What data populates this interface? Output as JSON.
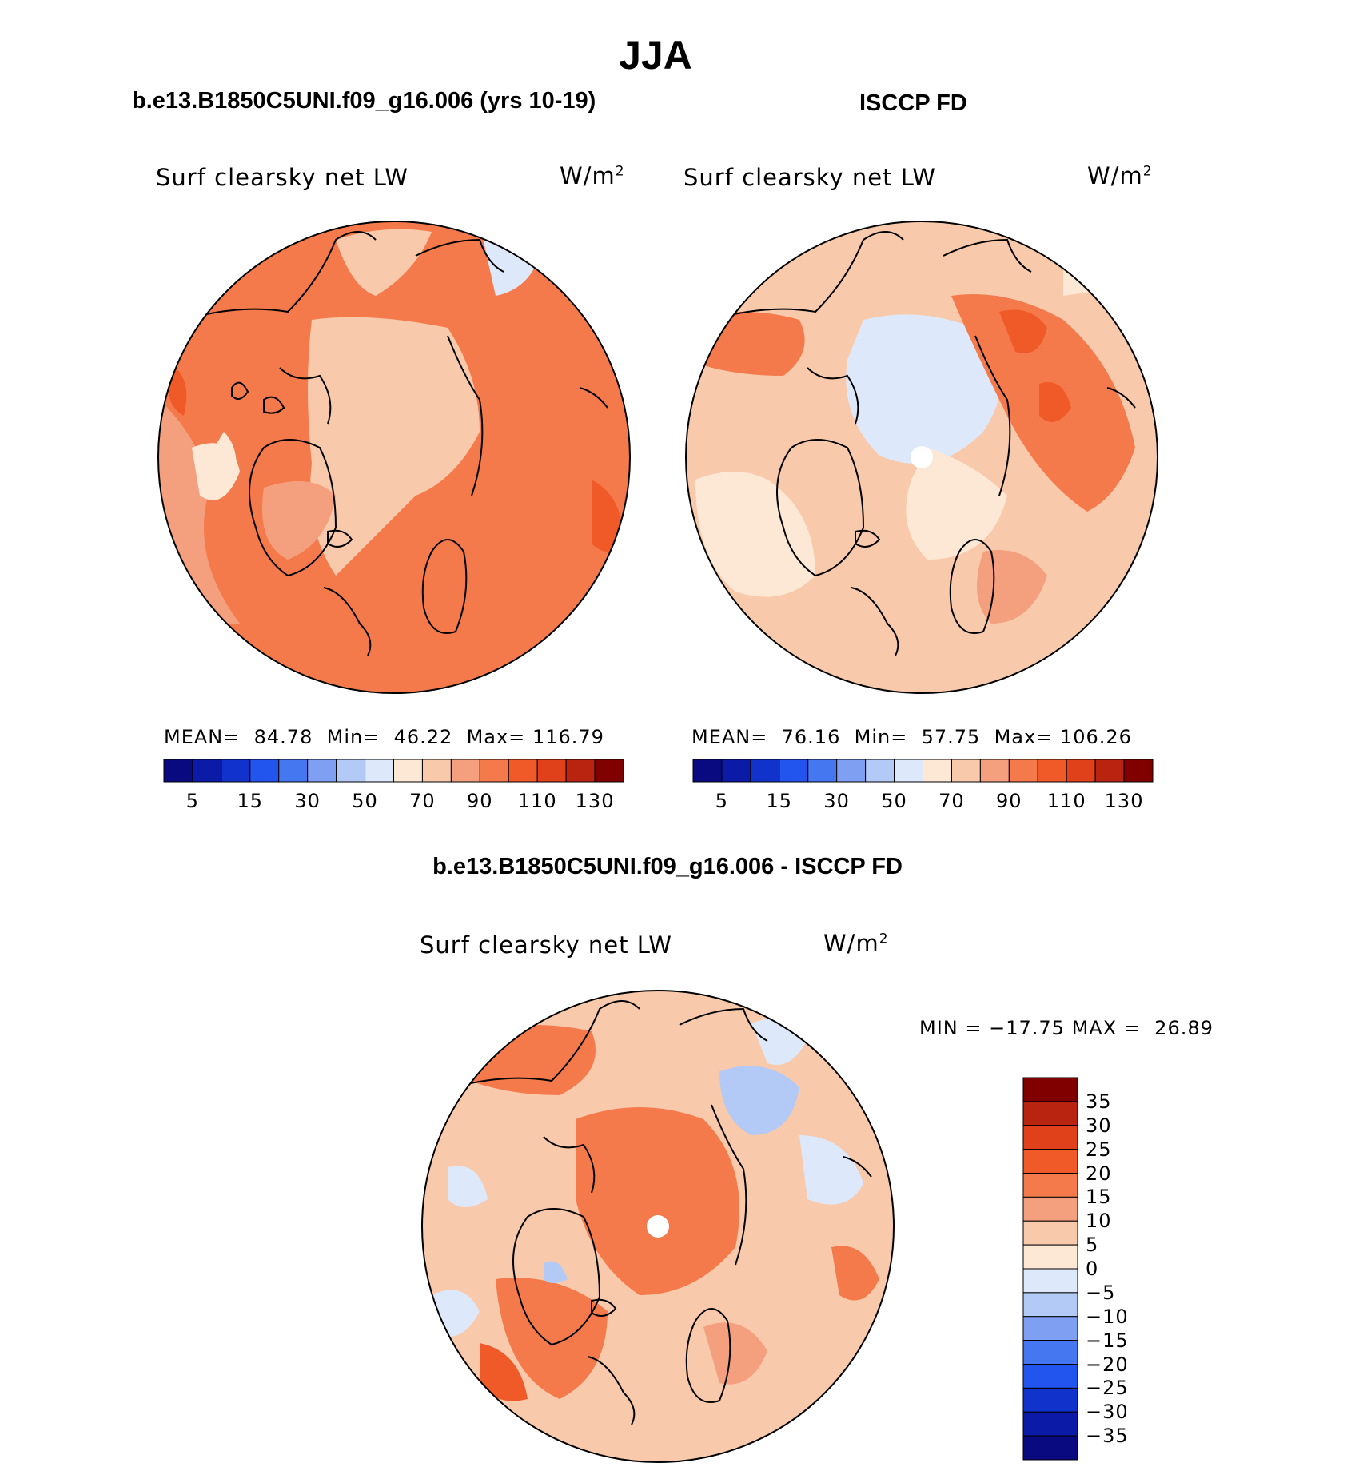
{
  "season": "JJA",
  "panels": [
    {
      "title": "b.e13.B1850C5UNI.f09_g16.006 (yrs 10-19)",
      "variable": "Surf clearsky net LW",
      "units_base": "W/m",
      "units_exp": "2",
      "mean_label": "MEAN=",
      "mean": "84.78",
      "min_label": "Min=",
      "min": "46.22",
      "max_label": "Max=",
      "max": "116.79"
    },
    {
      "title": "ISCCP FD",
      "variable": "Surf clearsky net LW",
      "units_base": "W/m",
      "units_exp": "2",
      "mean_label": "MEAN=",
      "mean": "76.16",
      "min_label": "Min=",
      "min": "57.75",
      "max_label": "Max=",
      "max": "106.26"
    }
  ],
  "abs_colorbar": {
    "colors": [
      "#0a0a80",
      "#0c1aa8",
      "#1133cc",
      "#2255ee",
      "#4477f0",
      "#7f9ff2",
      "#b3c9f6",
      "#dde9fb",
      "#fde8d6",
      "#f8c9ab",
      "#f4a07e",
      "#f47a4c",
      "#f05a28",
      "#e0401a",
      "#b82410",
      "#800000"
    ],
    "tick_labels": [
      "5",
      "15",
      "30",
      "50",
      "70",
      "90",
      "110",
      "130"
    ]
  },
  "diff": {
    "title": "b.e13.B1850C5UNI.f09_g16.006 - ISCCP FD",
    "variable": "Surf clearsky net LW",
    "units_base": "W/m",
    "units_exp": "2",
    "min_label": "MIN =",
    "min": "−17.75",
    "max_label": "MAX =",
    "max": "26.89",
    "colorbar_colors_top_to_bottom": [
      "#800000",
      "#b82410",
      "#e0401a",
      "#f05a28",
      "#f47a4c",
      "#f4a07e",
      "#f8c9ab",
      "#fde8d6",
      "#dde9fb",
      "#b3c9f6",
      "#7f9ff2",
      "#4477f0",
      "#2255ee",
      "#1133cc",
      "#0c1aa8",
      "#0a0a80"
    ],
    "tick_labels": [
      "35",
      "30",
      "25",
      "20",
      "15",
      "10",
      "5",
      "0",
      "−5",
      "−10",
      "−15",
      "−20",
      "−25",
      "−30",
      "−35"
    ]
  },
  "colors": {
    "land_outline": "#000000",
    "pole_marker": "#ffffff"
  }
}
